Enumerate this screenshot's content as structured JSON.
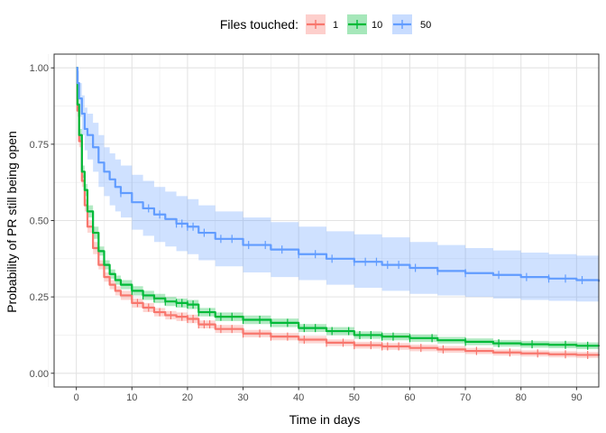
{
  "chart_data": {
    "type": "line",
    "title": "",
    "xlabel": "Time in days",
    "ylabel": "Probability of PR still being open",
    "xlim": [
      -4,
      94
    ],
    "ylim": [
      -0.045,
      1.045
    ],
    "xticks": [
      0,
      10,
      20,
      30,
      40,
      50,
      60,
      70,
      80,
      90
    ],
    "yticks": [
      0.0,
      0.25,
      0.5,
      0.75,
      1.0
    ],
    "ytick_labels": [
      "0.00",
      "0.25",
      "0.50",
      "0.75",
      "1.00"
    ],
    "grid": true,
    "legend": {
      "title": "Files touched:",
      "position": "top"
    },
    "series": [
      {
        "name": "1",
        "color": "#F8766D",
        "x": [
          0,
          0.2,
          0.5,
          1,
          1.5,
          2,
          3,
          4,
          5,
          6,
          7,
          8,
          10,
          12,
          14,
          16,
          18,
          20,
          22,
          25,
          30,
          35,
          40,
          45,
          50,
          55,
          60,
          65,
          70,
          75,
          80,
          85,
          90,
          94
        ],
        "y": [
          1.0,
          0.86,
          0.76,
          0.63,
          0.55,
          0.48,
          0.41,
          0.355,
          0.315,
          0.29,
          0.27,
          0.255,
          0.23,
          0.215,
          0.2,
          0.19,
          0.185,
          0.178,
          0.16,
          0.145,
          0.13,
          0.12,
          0.11,
          0.1,
          0.092,
          0.088,
          0.083,
          0.078,
          0.073,
          0.068,
          0.065,
          0.062,
          0.06,
          0.058
        ],
        "lower": [
          1.0,
          0.84,
          0.74,
          0.61,
          0.53,
          0.46,
          0.39,
          0.34,
          0.3,
          0.275,
          0.255,
          0.24,
          0.215,
          0.2,
          0.186,
          0.176,
          0.171,
          0.164,
          0.147,
          0.132,
          0.118,
          0.108,
          0.098,
          0.089,
          0.081,
          0.077,
          0.072,
          0.067,
          0.063,
          0.058,
          0.055,
          0.052,
          0.05,
          0.048
        ],
        "upper": [
          1.0,
          0.88,
          0.78,
          0.65,
          0.57,
          0.5,
          0.43,
          0.37,
          0.33,
          0.305,
          0.285,
          0.27,
          0.245,
          0.23,
          0.214,
          0.204,
          0.199,
          0.192,
          0.173,
          0.158,
          0.142,
          0.132,
          0.122,
          0.111,
          0.103,
          0.099,
          0.094,
          0.089,
          0.083,
          0.078,
          0.075,
          0.072,
          0.07,
          0.068
        ],
        "censor_x": [
          11,
          13,
          15,
          17,
          19,
          20,
          21,
          22,
          23,
          24,
          26,
          28,
          30,
          33,
          35,
          38,
          41,
          45,
          48,
          50,
          53,
          55,
          56,
          58,
          62,
          66,
          72,
          78,
          83,
          88,
          92
        ]
      },
      {
        "name": "10",
        "color": "#00BA38",
        "x": [
          0,
          0.2,
          0.5,
          1,
          1.5,
          2,
          3,
          4,
          5,
          6,
          7,
          8,
          10,
          12,
          14,
          16,
          18,
          20,
          22,
          25,
          30,
          35,
          40,
          45,
          50,
          55,
          60,
          65,
          70,
          75,
          80,
          85,
          90,
          94
        ],
        "y": [
          1.0,
          0.88,
          0.78,
          0.66,
          0.6,
          0.53,
          0.46,
          0.4,
          0.355,
          0.325,
          0.305,
          0.29,
          0.27,
          0.255,
          0.245,
          0.235,
          0.23,
          0.225,
          0.2,
          0.185,
          0.175,
          0.165,
          0.148,
          0.138,
          0.125,
          0.12,
          0.115,
          0.108,
          0.103,
          0.098,
          0.095,
          0.093,
          0.09,
          0.088
        ],
        "lower": [
          1.0,
          0.86,
          0.76,
          0.64,
          0.58,
          0.51,
          0.44,
          0.385,
          0.34,
          0.31,
          0.29,
          0.275,
          0.255,
          0.24,
          0.23,
          0.22,
          0.215,
          0.21,
          0.186,
          0.171,
          0.161,
          0.151,
          0.135,
          0.125,
          0.113,
          0.108,
          0.103,
          0.097,
          0.092,
          0.087,
          0.084,
          0.082,
          0.079,
          0.077
        ],
        "upper": [
          1.0,
          0.9,
          0.8,
          0.68,
          0.62,
          0.55,
          0.48,
          0.415,
          0.37,
          0.34,
          0.32,
          0.305,
          0.285,
          0.27,
          0.26,
          0.25,
          0.245,
          0.24,
          0.214,
          0.199,
          0.189,
          0.179,
          0.161,
          0.151,
          0.137,
          0.132,
          0.127,
          0.119,
          0.114,
          0.109,
          0.106,
          0.104,
          0.101,
          0.099
        ],
        "censor_x": [
          10,
          12,
          14,
          16,
          18,
          19,
          20,
          21,
          22,
          24,
          26,
          28,
          30,
          33,
          35,
          38,
          41,
          43,
          46,
          49,
          51,
          53,
          55,
          57,
          60,
          64,
          70,
          76,
          82,
          88,
          92
        ]
      },
      {
        "name": "50",
        "color": "#619CFF",
        "x": [
          0,
          0.2,
          0.5,
          1,
          1.5,
          2,
          3,
          4,
          5,
          6,
          7,
          8,
          10,
          12,
          14,
          16,
          18,
          20,
          22,
          25,
          30,
          35,
          40,
          45,
          50,
          55,
          60,
          65,
          70,
          75,
          80,
          85,
          90,
          94
        ],
        "y": [
          1.0,
          0.95,
          0.9,
          0.85,
          0.8,
          0.78,
          0.74,
          0.69,
          0.66,
          0.635,
          0.61,
          0.59,
          0.56,
          0.54,
          0.52,
          0.505,
          0.49,
          0.48,
          0.46,
          0.44,
          0.42,
          0.405,
          0.39,
          0.375,
          0.365,
          0.355,
          0.345,
          0.335,
          0.328,
          0.322,
          0.315,
          0.31,
          0.305,
          0.3
        ],
        "lower": [
          1.0,
          0.9,
          0.84,
          0.78,
          0.73,
          0.7,
          0.66,
          0.61,
          0.58,
          0.55,
          0.53,
          0.51,
          0.47,
          0.45,
          0.43,
          0.415,
          0.4,
          0.39,
          0.37,
          0.35,
          0.33,
          0.315,
          0.305,
          0.29,
          0.28,
          0.27,
          0.26,
          0.255,
          0.25,
          0.245,
          0.24,
          0.237,
          0.235,
          0.232
        ],
        "upper": [
          1.0,
          0.99,
          0.95,
          0.91,
          0.87,
          0.85,
          0.82,
          0.78,
          0.74,
          0.72,
          0.7,
          0.68,
          0.65,
          0.63,
          0.61,
          0.595,
          0.58,
          0.57,
          0.55,
          0.53,
          0.51,
          0.495,
          0.48,
          0.465,
          0.455,
          0.445,
          0.43,
          0.42,
          0.41,
          0.402,
          0.395,
          0.39,
          0.385,
          0.378
        ],
        "censor_x": [
          8,
          13,
          15,
          18,
          19,
          20,
          21,
          23,
          26,
          28,
          31,
          34,
          37,
          40,
          43,
          46,
          50,
          52,
          54,
          56,
          58,
          61,
          65,
          70,
          76,
          81,
          85,
          88,
          91
        ]
      }
    ]
  }
}
